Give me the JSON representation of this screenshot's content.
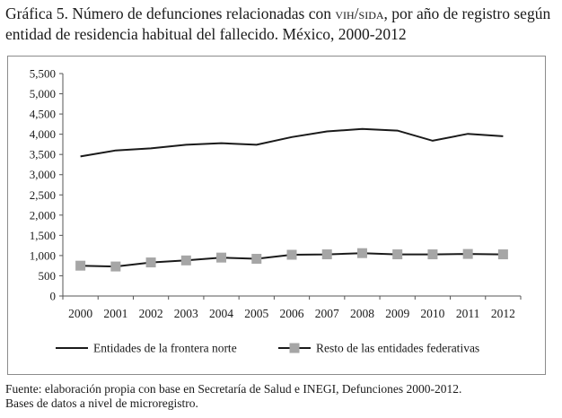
{
  "header": {
    "title_part1": "Gráfica 5. Número de defunciones relacionadas con ",
    "title_smallcaps": "vih/sida",
    "title_part2": ", por año de registro según entidad de residencia habitual del fallecido. México, 2000-2012"
  },
  "footer": {
    "source_line1": "Fuente: elaboración propia con base en Secretaría de Salud e INEGI, Defunciones 2000-2012.",
    "source_line2": "Bases de datos a nivel de microregistro."
  },
  "chart_data": {
    "type": "line",
    "title": "Número de defunciones relacionadas con VIH/SIDA, por año de registro según entidad de residencia habitual del fallecido. México, 2000-2012",
    "xlabel": "",
    "ylabel": "",
    "categories": [
      "2000",
      "2001",
      "2002",
      "2003",
      "2004",
      "2005",
      "2006",
      "2007",
      "2008",
      "2009",
      "2010",
      "2011",
      "2012"
    ],
    "ylim": [
      0,
      5500
    ],
    "yticks": [
      0,
      500,
      1000,
      1500,
      2000,
      2500,
      3000,
      3500,
      4000,
      4500,
      5000,
      5500
    ],
    "ytick_labels": [
      "0",
      "500",
      "1,000",
      "1,500",
      "2,000",
      "2,500",
      "3,000",
      "3,500",
      "4,000",
      "4,500",
      "5,000",
      "5,500"
    ],
    "grid": false,
    "legend_position": "bottom",
    "series": [
      {
        "name": "Entidades de la frontera norte",
        "values": [
          3450,
          3600,
          3650,
          3740,
          3780,
          3740,
          3930,
          4070,
          4130,
          4090,
          3840,
          4010,
          3950
        ],
        "color": "#1a1a1a",
        "marker": "none"
      },
      {
        "name": "Resto de las entidades federativas",
        "values": [
          750,
          730,
          830,
          880,
          950,
          920,
          1020,
          1030,
          1060,
          1030,
          1030,
          1040,
          1030
        ],
        "color": "#1a1a1a",
        "marker": "square",
        "marker_color": "#a6a6a6"
      }
    ]
  }
}
